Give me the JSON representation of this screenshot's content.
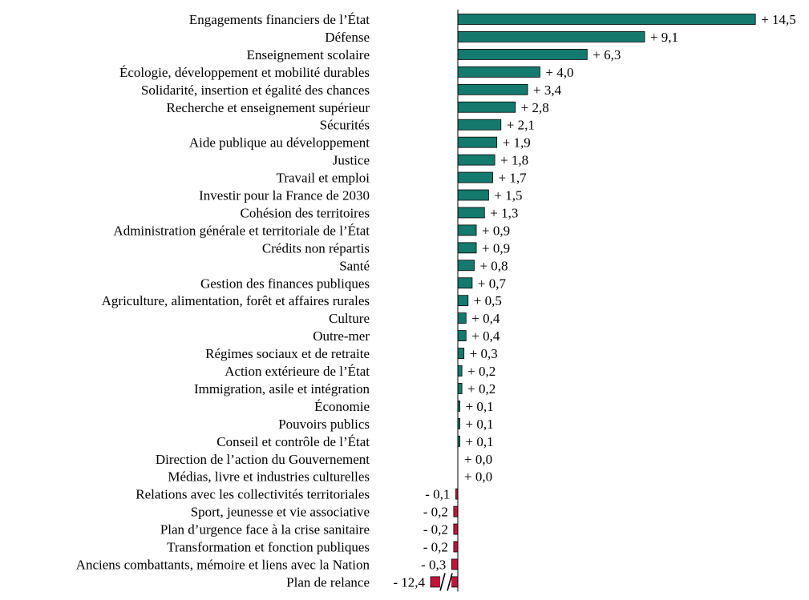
{
  "chart_data": {
    "type": "bar",
    "orientation": "horizontal",
    "colors": {
      "positive": "#157a6e",
      "negative": "#c0143c",
      "bar_border": "#000000",
      "axis": "#000000"
    },
    "break_marker": "//",
    "categories": [
      "Engagements financiers de l’État",
      "Défense",
      "Enseignement scolaire",
      "Écologie, développement et mobilité durables",
      "Solidarité, insertion et égalité des  chances",
      "Recherche et enseignement supérieur",
      "Sécurités",
      "Aide publique au développement",
      "Justice",
      "Travail et emploi",
      "Investir pour  la France de 2030",
      "Cohésion des territoires",
      "Administration générale et territoriale de l’État",
      "Crédits non répartis",
      "Santé",
      "Gestion des finances publiques",
      "Agriculture, alimentation, forêt et affaires rurales",
      "Culture",
      "Outre-mer",
      "Régimes sociaux et de retraite",
      "Action extérieure de l’État",
      "Immigration, asile et intégration",
      "Économie",
      "Pouvoirs publics",
      "Conseil et contrôle de l’État",
      "Direction de l’action du  Gouvernement",
      "Médias, livre et industries culturelles",
      "Relations avec les collectivités territoriales",
      "Sport, jeunesse et vie associative",
      "Plan d’urgence face à la crise  sanitaire",
      "Transformation et fonction publiques",
      "Anciens combattants, mémoire et liens avec la Nation",
      "Plan de relance"
    ],
    "values": [
      14.5,
      9.1,
      6.3,
      4.0,
      3.4,
      2.8,
      2.1,
      1.9,
      1.8,
      1.7,
      1.5,
      1.3,
      0.9,
      0.9,
      0.8,
      0.7,
      0.5,
      0.4,
      0.4,
      0.3,
      0.2,
      0.2,
      0.1,
      0.1,
      0.1,
      0.0,
      0.0,
      -0.1,
      -0.2,
      -0.2,
      -0.2,
      -0.3,
      -12.4
    ],
    "labels": [
      "+ 14,5",
      "+ 9,1",
      "+ 6,3",
      "+ 4,0",
      "+ 3,4",
      "+ 2,8",
      "+ 2,1",
      "+ 1,9",
      "+ 1,8",
      "+ 1,7",
      "+ 1,5",
      "+ 1,3",
      "+ 0,9",
      "+ 0,9",
      "+ 0,8",
      "+ 0,7",
      "+ 0,5",
      "+ 0,4",
      "+ 0,4",
      "+ 0,3",
      "+ 0,2",
      "+ 0,2",
      "+ 0,1",
      "+ 0,1",
      "+ 0,1",
      "+ 0,0",
      "+ 0,0",
      "- 0,1",
      "- 0,2",
      "- 0,2",
      "- 0,2",
      "- 0,3",
      "- 12,4"
    ]
  }
}
